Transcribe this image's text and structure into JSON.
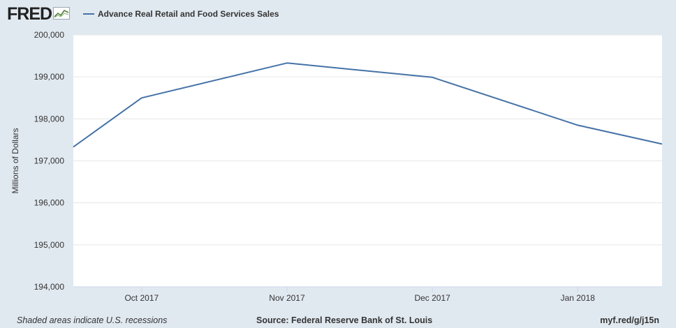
{
  "header": {
    "logo_text": "FRED",
    "logo_icon": "chart-line-icon",
    "legend_label": "Advance Real Retail and Food Services Sales"
  },
  "colors": {
    "background": "#e1e9f0",
    "plot_background": "#ffffff",
    "series": "#4572a7",
    "grid": "#e6e6e6"
  },
  "chart_data": {
    "type": "line",
    "title": "",
    "xlabel": "",
    "ylabel": "Millions of Dollars",
    "ylim": [
      194000,
      200000
    ],
    "y_ticks": [
      194000,
      195000,
      196000,
      197000,
      198000,
      199000,
      200000
    ],
    "y_tick_labels": [
      "194,000",
      "195,000",
      "196,000",
      "197,000",
      "198,000",
      "199,000",
      "200,000"
    ],
    "x_tick_labels": [
      "Oct 2017",
      "Nov 2017",
      "Dec 2017",
      "Jan 2018"
    ],
    "x_ticks": [
      1,
      2,
      3,
      4
    ],
    "x_range": [
      0.53,
      4.58
    ],
    "grid": true,
    "legend": "top-left",
    "series": [
      {
        "name": "Advance Real Retail and Food Services Sales",
        "x": [
          0.53,
          1,
          2,
          3,
          4,
          4.58
        ],
        "y": [
          197330,
          198500,
          199330,
          198990,
          197850,
          197400
        ]
      }
    ]
  },
  "footer": {
    "recession_note": "Shaded areas indicate U.S. recessions",
    "source": "Source: Federal Reserve Bank of St. Louis",
    "link": "myf.red/g/j15n"
  }
}
